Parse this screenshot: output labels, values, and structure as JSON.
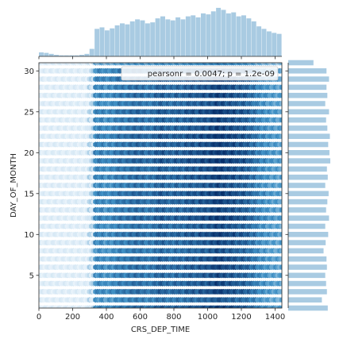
{
  "chart_data": {
    "type": "hexbin-jointplot",
    "xlabel": "CRS_DEP_TIME",
    "ylabel": "DAY_OF_MONTH",
    "xlim": [
      0,
      1440
    ],
    "ylim": [
      1,
      31
    ],
    "x_ticks": [
      0,
      200,
      400,
      600,
      800,
      1000,
      1200,
      1400
    ],
    "y_ticks": [
      5,
      10,
      15,
      20,
      25,
      30
    ],
    "annotation": "pearsonr = 0.0047; p = 1.2e-09",
    "legend_position": "upper-right",
    "colors": {
      "marginal": "#a9cbe2",
      "hex_dark": "#08306b",
      "hex_light": "#f7fbff"
    },
    "x_marginal": {
      "bin_width": 30,
      "bin_starts": [
        0,
        30,
        60,
        90,
        120,
        150,
        180,
        210,
        240,
        270,
        300,
        330,
        360,
        390,
        420,
        450,
        480,
        510,
        540,
        570,
        600,
        630,
        660,
        690,
        720,
        750,
        780,
        810,
        840,
        870,
        900,
        930,
        960,
        990,
        1020,
        1050,
        1080,
        1110,
        1140,
        1170,
        1200,
        1230,
        1260,
        1290,
        1320,
        1350,
        1380,
        1410
      ],
      "relative_heights": [
        0.08,
        0.07,
        0.05,
        0.03,
        0.02,
        0.02,
        0.02,
        0.02,
        0.03,
        0.05,
        0.15,
        0.55,
        0.58,
        0.52,
        0.56,
        0.62,
        0.66,
        0.64,
        0.7,
        0.74,
        0.72,
        0.66,
        0.68,
        0.76,
        0.8,
        0.74,
        0.72,
        0.78,
        0.74,
        0.8,
        0.82,
        0.78,
        0.86,
        0.84,
        0.9,
        0.97,
        0.93,
        0.86,
        0.88,
        0.8,
        0.82,
        0.76,
        0.7,
        0.6,
        0.55,
        0.5,
        0.47,
        0.45
      ]
    },
    "y_marginal": {
      "days": [
        1,
        2,
        3,
        4,
        5,
        6,
        7,
        8,
        9,
        10,
        11,
        12,
        13,
        14,
        15,
        16,
        17,
        18,
        19,
        20,
        21,
        22,
        23,
        24,
        25,
        26,
        27,
        28,
        29,
        30,
        31
      ],
      "relative_counts": [
        0.94,
        0.8,
        0.92,
        0.9,
        0.88,
        0.92,
        0.91,
        0.84,
        0.89,
        0.95,
        0.88,
        0.97,
        0.9,
        0.93,
        0.96,
        0.88,
        0.94,
        0.92,
        1.0,
        0.98,
        0.95,
        0.99,
        0.93,
        0.9,
        0.97,
        0.88,
        0.93,
        0.91,
        0.97,
        0.91,
        0.6
      ]
    }
  }
}
